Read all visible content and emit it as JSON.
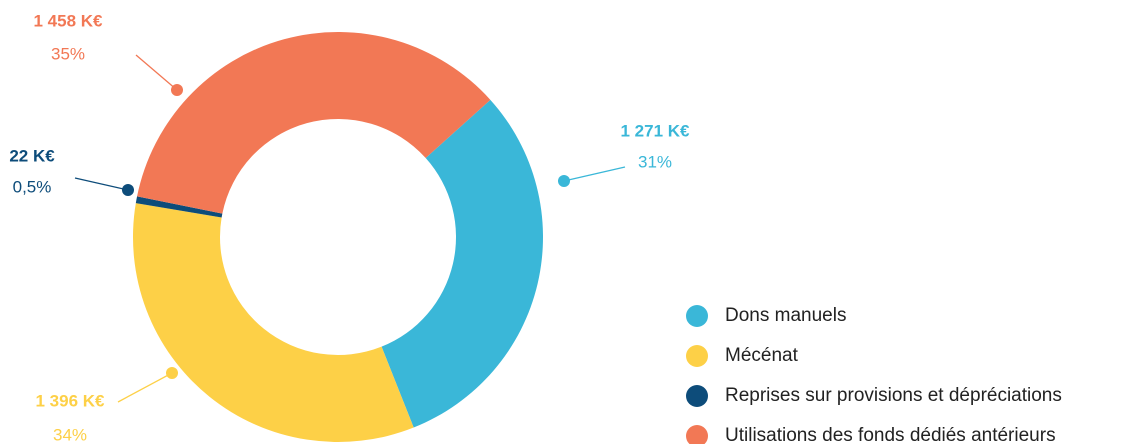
{
  "chart_data": {
    "type": "donut",
    "categories": [
      "Dons manuels",
      "Mécénat",
      "Reprises sur provisions et dépréciations",
      "Utilisations des fonds dédiés antérieurs"
    ],
    "values": [
      1271,
      1396,
      22,
      1458
    ],
    "value_labels": [
      "1 271 K€",
      "1 396 K€",
      "22 K€",
      "1 458 K€"
    ],
    "percent_values": [
      31,
      34,
      0.5,
      35
    ],
    "percent_labels": [
      "31%",
      "34%",
      "0,5%",
      "35%"
    ],
    "colors": [
      "#3ab7d8",
      "#fdd047",
      "#0d4c7a",
      "#f27855"
    ]
  }
}
